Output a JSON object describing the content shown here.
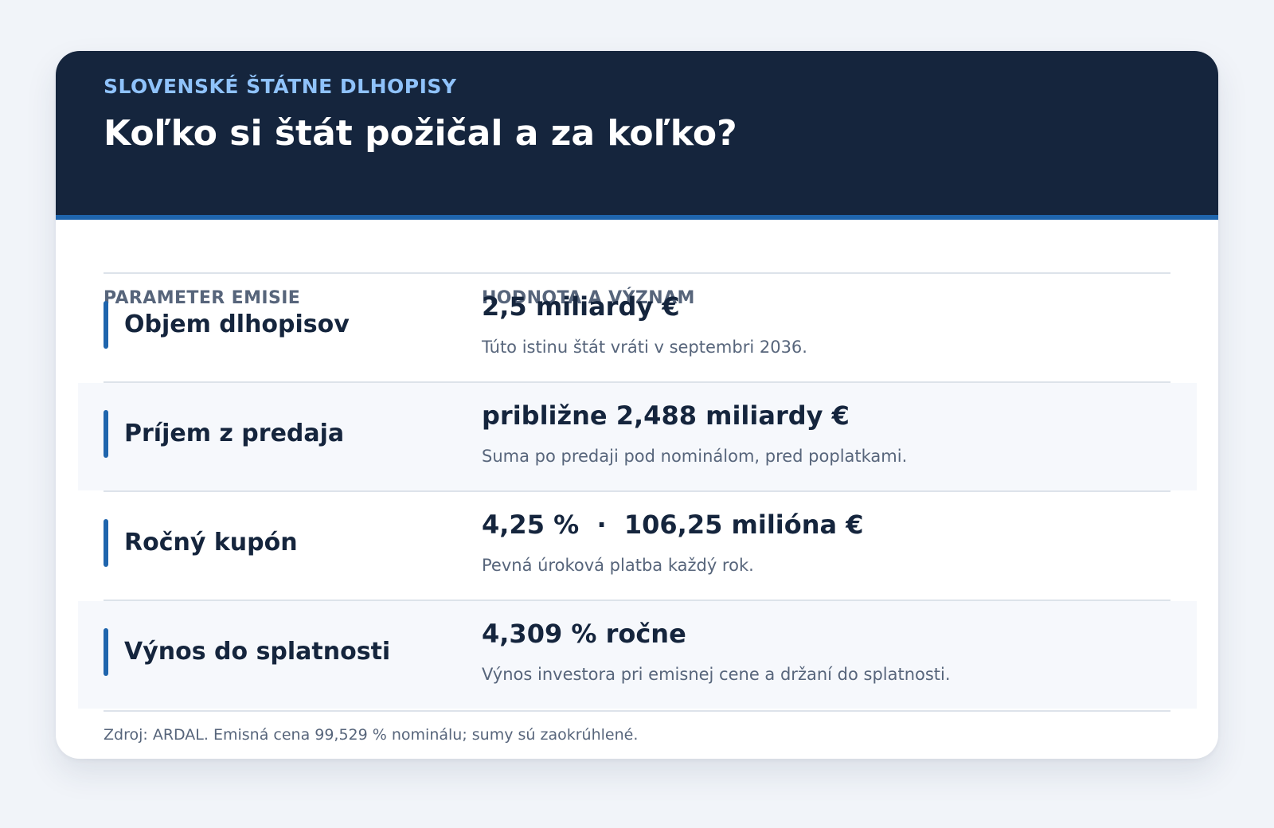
{
  "header": {
    "eyebrow": "SLOVENSKÉ ŠTÁTNE DLHOPISY",
    "title": "Koľko si štát požičal a za koľko?"
  },
  "table": {
    "columns": [
      "PARAMETER EMISIE",
      "HODNOTA A VÝZNAM"
    ],
    "rows": [
      {
        "parameter": "Objem dlhopisov",
        "value": "2,5 miliardy €",
        "description": "Túto istinu štát vráti v septembri 2036."
      },
      {
        "parameter": "Príjem z predaja",
        "value": "približne 2,488 miliardy €",
        "description": "Suma po predaji pod nominálom, pred poplatkami."
      },
      {
        "parameter": "Ročný kupón",
        "value": "4,25 %  ·  106,25 milióna €",
        "description": "Pevná úroková platba každý rok."
      },
      {
        "parameter": "Výnos do splatnosti",
        "value": "4,309 % ročne",
        "description": "Výnos investora pri emisnej cene a držaní do splatnosti."
      }
    ]
  },
  "footer": {
    "note": "Zdroj: ARDAL. Emisná cena 99,529 % nominálu; sumy sú zaokrúhlené."
  },
  "colors": {
    "header_bg": "#15253d",
    "accent": "#1f65ad",
    "eyebrow": "#8fc2fb",
    "muted_text": "#57657b"
  }
}
